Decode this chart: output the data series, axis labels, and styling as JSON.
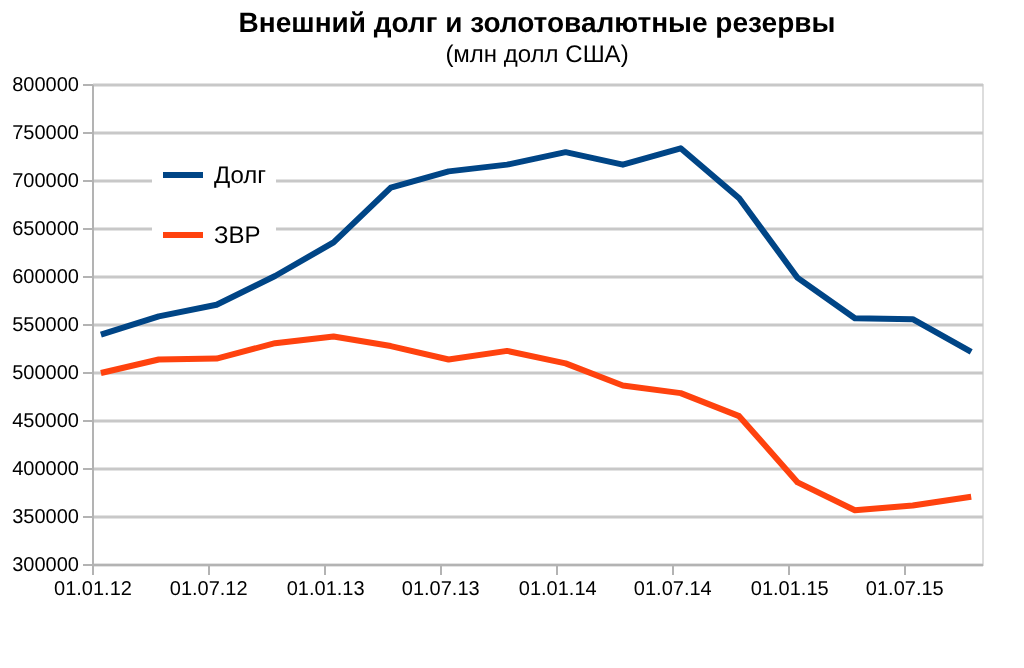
{
  "chart_data": {
    "type": "line",
    "title": "Внешний долг и золотовалютные резервы",
    "subtitle": "(млн долл США)",
    "x": [
      "2012-01-15",
      "2012-04-15",
      "2012-07-15",
      "2012-10-15",
      "2013-01-15",
      "2013-04-15",
      "2013-07-15",
      "2013-10-15",
      "2014-01-15",
      "2014-04-15",
      "2014-07-15",
      "2014-10-15",
      "2015-01-15",
      "2015-04-15",
      "2015-07-15",
      "2015-10-15"
    ],
    "series": [
      {
        "name": "Долг",
        "color": "#004586",
        "values": [
          539000,
          558000,
          570000,
          600000,
          635000,
          692000,
          709000,
          716000,
          729000,
          716000,
          733000,
          681000,
          598000,
          556000,
          555000,
          521000
        ]
      },
      {
        "name": "ЗВР",
        "color": "#ff420e",
        "values": [
          499000,
          513000,
          514000,
          530000,
          537000,
          527000,
          513000,
          522000,
          509000,
          486000,
          478000,
          454000,
          385000,
          356000,
          361000,
          370000
        ]
      }
    ],
    "xlim": [
      "2012-01-01",
      "2015-11-01"
    ],
    "xticks": [
      {
        "value": "2012-01-01",
        "label": "01.01.12"
      },
      {
        "value": "2012-07-01",
        "label": "01.07.12"
      },
      {
        "value": "2013-01-01",
        "label": "01.01.13"
      },
      {
        "value": "2013-07-01",
        "label": "01.07.13"
      },
      {
        "value": "2014-01-01",
        "label": "01.01.14"
      },
      {
        "value": "2014-07-01",
        "label": "01.07.14"
      },
      {
        "value": "2015-01-01",
        "label": "01.01.15"
      },
      {
        "value": "2015-07-01",
        "label": "01.07.15"
      }
    ],
    "ylim": [
      300000,
      800000
    ],
    "yticks": [
      300000,
      350000,
      400000,
      450000,
      500000,
      550000,
      600000,
      650000,
      700000,
      750000,
      800000
    ],
    "grid": "y",
    "legend": "top left",
    "marker": "none",
    "line_style": "solid"
  }
}
